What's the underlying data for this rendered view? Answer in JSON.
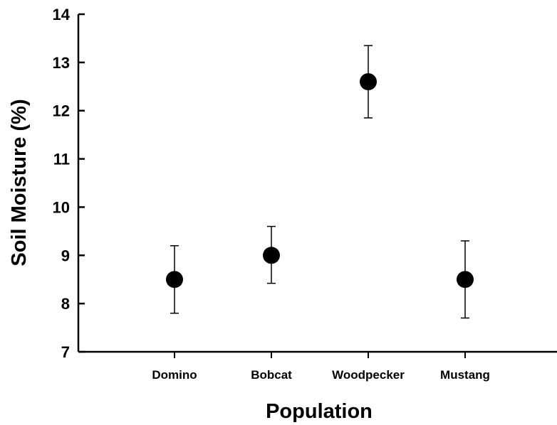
{
  "chart_data": {
    "type": "scatter",
    "categories": [
      "Domino",
      "Bobcat",
      "Woodpecker",
      "Mustang"
    ],
    "series": [
      {
        "values": [
          8.5,
          9.0,
          12.6,
          8.5
        ],
        "error_low": [
          7.8,
          8.42,
          11.85,
          7.7
        ],
        "error_high": [
          9.2,
          9.6,
          13.35,
          9.3
        ]
      }
    ],
    "xlabel": "Population",
    "ylabel": "Soil Moisture (%)",
    "ylim": [
      7,
      14
    ],
    "yticks": [
      7,
      8,
      9,
      10,
      11,
      12,
      13,
      14
    ],
    "grid": false,
    "marker_color": "#000000"
  }
}
